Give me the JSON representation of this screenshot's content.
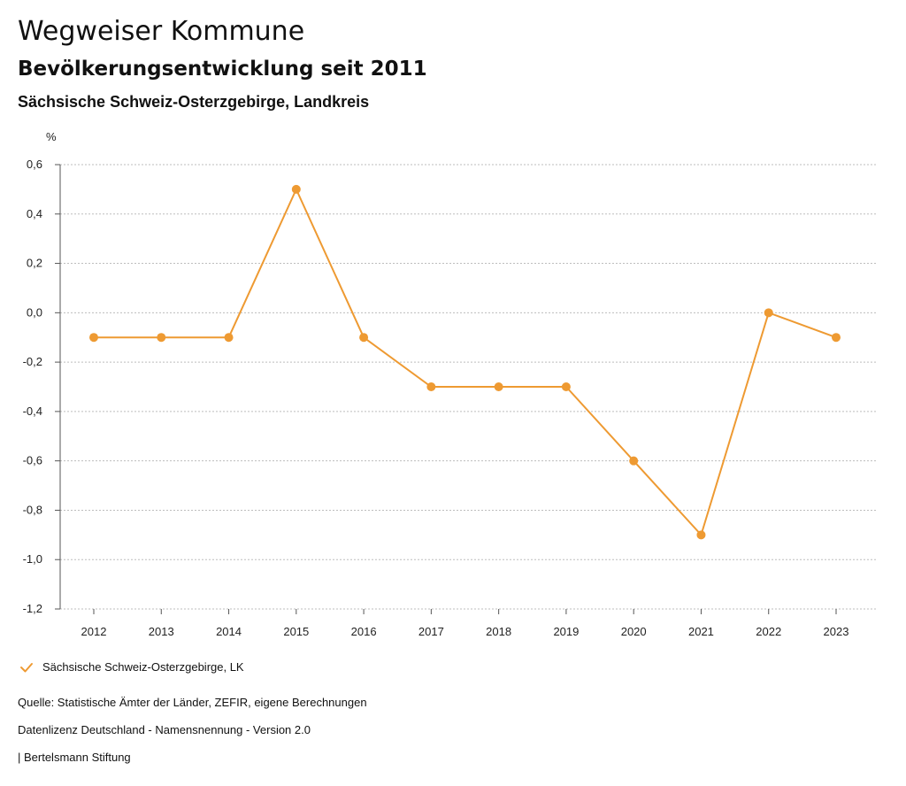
{
  "header": {
    "title": "Wegweiser Kommune",
    "subtitle": "Bevölkerungsentwicklung seit 2011",
    "region": "Sächsische Schweiz-Osterzgebirge, Landkreis"
  },
  "chart_data": {
    "type": "line",
    "title": "Bevölkerungsentwicklung seit 2011",
    "ylabel": "%",
    "xlabel": "",
    "categories": [
      "2012",
      "2013",
      "2014",
      "2015",
      "2016",
      "2017",
      "2018",
      "2019",
      "2020",
      "2021",
      "2022",
      "2023"
    ],
    "series": [
      {
        "name": "Sächsische Schweiz-Osterzgebirge, LK",
        "color": "#EE9A32",
        "values": [
          -0.1,
          -0.1,
          -0.1,
          0.5,
          -0.1,
          -0.3,
          -0.3,
          -0.3,
          -0.6,
          -0.9,
          0.0,
          -0.1
        ]
      }
    ],
    "ylim": [
      -1.2,
      0.6
    ],
    "yticks": [
      0.6,
      0.4,
      0.2,
      0.0,
      -0.2,
      -0.4,
      -0.6,
      -0.8,
      -1.0,
      -1.2
    ],
    "ytick_labels": [
      "0,6",
      "0,4",
      "0,2",
      "0,0",
      "-0,2",
      "-0,4",
      "-0,6",
      "-0,8",
      "-1,0",
      "-1,2"
    ],
    "grid": true,
    "legend_position": "bottom-left"
  },
  "legend": {
    "label": "Sächsische Schweiz-Osterzgebirge, LK",
    "icon": "check-icon"
  },
  "footer": {
    "source": "Quelle: Statistische Ämter der Länder, ZEFIR, eigene Berechnungen",
    "license": "Datenlizenz Deutschland - Namensnennung - Version 2.0",
    "publisher": "| Bertelsmann Stiftung"
  }
}
